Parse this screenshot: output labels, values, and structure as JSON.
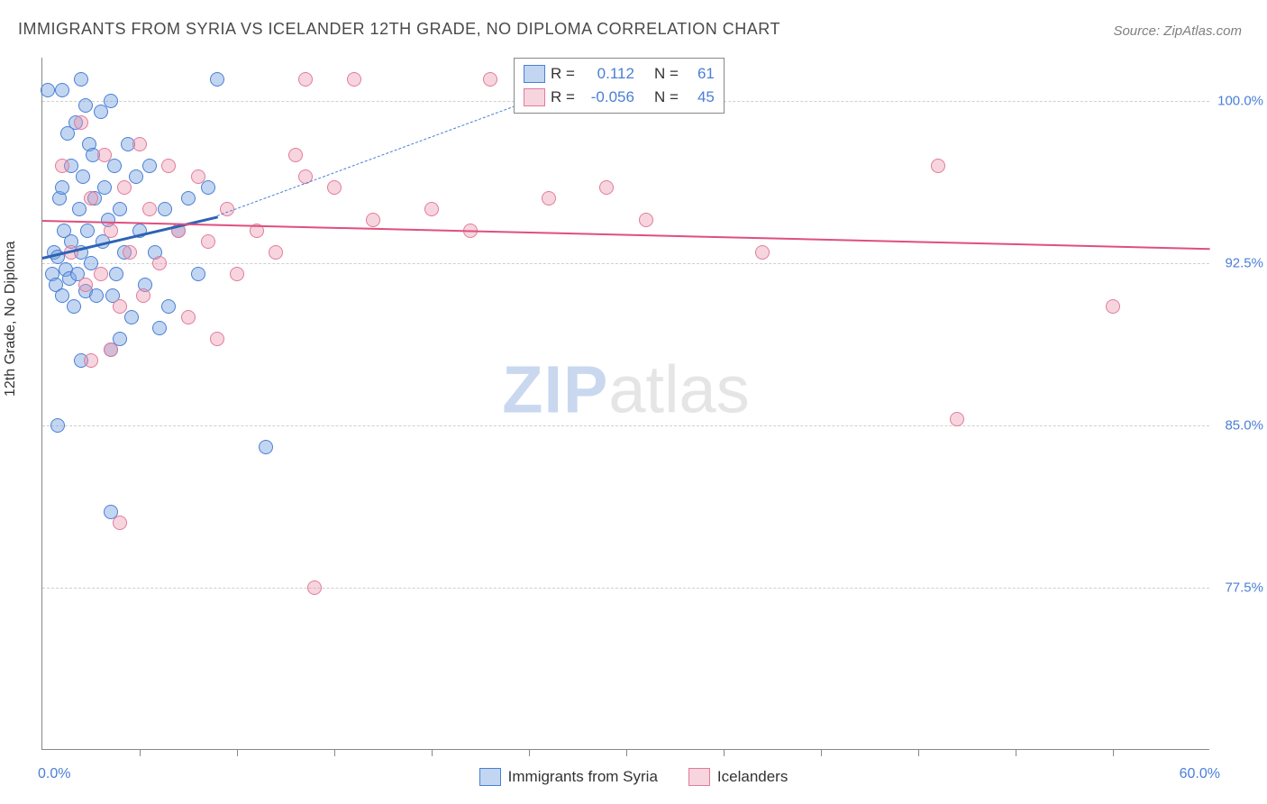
{
  "title": "IMMIGRANTS FROM SYRIA VS ICELANDER 12TH GRADE, NO DIPLOMA CORRELATION CHART",
  "source": "Source: ZipAtlas.com",
  "ylabel": "12th Grade, No Diploma",
  "watermark": {
    "zip": "ZIP",
    "atlas": "atlas"
  },
  "chart": {
    "type": "scatter",
    "background_color": "#ffffff",
    "grid_color": "#cfcfcf",
    "axis_color": "#888888",
    "xlim": [
      0,
      60
    ],
    "ylim": [
      70,
      102
    ],
    "x_axis_label_0": "0.0%",
    "x_axis_label_max": "60.0%",
    "yticks": [
      {
        "v": 77.5,
        "label": "77.5%"
      },
      {
        "v": 85.0,
        "label": "85.0%"
      },
      {
        "v": 92.5,
        "label": "92.5%"
      },
      {
        "v": 100.0,
        "label": "100.0%"
      }
    ],
    "xticks": [
      5,
      10,
      15,
      20,
      25,
      30,
      35,
      40,
      45,
      50,
      55
    ],
    "marker_radius": 8,
    "marker_border": 1.5,
    "series": [
      {
        "name": "Immigrants from Syria",
        "fill": "rgba(120,165,225,0.45)",
        "stroke": "#4a7fd6",
        "trend": {
          "solid": {
            "x1": 0,
            "y1": 92.8,
            "x2": 9,
            "y2": 94.7,
            "color": "#2d63b5",
            "width": 3
          },
          "dash": {
            "x1": 9,
            "y1": 94.7,
            "x2": 28,
            "y2": 101.0,
            "color": "#4a7fd6",
            "width": 1.5
          }
        },
        "points": [
          [
            0.3,
            100.5
          ],
          [
            0.5,
            92.0
          ],
          [
            0.6,
            93.0
          ],
          [
            0.7,
            91.5
          ],
          [
            0.8,
            92.8
          ],
          [
            0.9,
            95.5
          ],
          [
            1.0,
            91.0
          ],
          [
            1.0,
            96.0
          ],
          [
            1.1,
            94.0
          ],
          [
            1.2,
            92.2
          ],
          [
            1.3,
            98.5
          ],
          [
            1.4,
            91.8
          ],
          [
            1.5,
            93.5
          ],
          [
            1.5,
            97.0
          ],
          [
            1.6,
            90.5
          ],
          [
            1.7,
            99.0
          ],
          [
            1.8,
            92.0
          ],
          [
            1.9,
            95.0
          ],
          [
            2.0,
            101.0
          ],
          [
            2.0,
            93.0
          ],
          [
            2.1,
            96.5
          ],
          [
            2.2,
            91.2
          ],
          [
            2.3,
            94.0
          ],
          [
            2.4,
            98.0
          ],
          [
            2.5,
            92.5
          ],
          [
            2.6,
            97.5
          ],
          [
            2.7,
            95.5
          ],
          [
            2.8,
            91.0
          ],
          [
            3.0,
            99.5
          ],
          [
            3.1,
            93.5
          ],
          [
            3.2,
            96.0
          ],
          [
            3.4,
            94.5
          ],
          [
            3.5,
            100.0
          ],
          [
            3.6,
            91.0
          ],
          [
            3.7,
            97.0
          ],
          [
            3.8,
            92.0
          ],
          [
            4.0,
            95.0
          ],
          [
            4.2,
            93.0
          ],
          [
            4.4,
            98.0
          ],
          [
            4.6,
            90.0
          ],
          [
            4.8,
            96.5
          ],
          [
            5.0,
            94.0
          ],
          [
            5.3,
            91.5
          ],
          [
            5.5,
            97.0
          ],
          [
            5.8,
            93.0
          ],
          [
            6.0,
            89.5
          ],
          [
            6.3,
            95.0
          ],
          [
            6.5,
            90.5
          ],
          [
            3.5,
            88.5
          ],
          [
            4.0,
            89.0
          ],
          [
            2.0,
            88.0
          ],
          [
            0.8,
            85.0
          ],
          [
            3.5,
            81.0
          ],
          [
            7.0,
            94.0
          ],
          [
            7.5,
            95.5
          ],
          [
            8.0,
            92.0
          ],
          [
            8.5,
            96.0
          ],
          [
            9.0,
            101.0
          ],
          [
            2.2,
            99.8
          ],
          [
            1.0,
            100.5
          ],
          [
            11.5,
            84.0
          ]
        ]
      },
      {
        "name": "Icelanders",
        "fill": "rgba(235,150,175,0.40)",
        "stroke": "#e27b9a",
        "trend": {
          "solid": {
            "x1": 0,
            "y1": 94.5,
            "x2": 60,
            "y2": 93.2,
            "color": "#e04f7d",
            "width": 2.5
          }
        },
        "points": [
          [
            1.0,
            97.0
          ],
          [
            1.5,
            93.0
          ],
          [
            2.0,
            99.0
          ],
          [
            2.2,
            91.5
          ],
          [
            2.5,
            95.5
          ],
          [
            3.0,
            92.0
          ],
          [
            3.2,
            97.5
          ],
          [
            3.5,
            94.0
          ],
          [
            4.0,
            90.5
          ],
          [
            4.2,
            96.0
          ],
          [
            4.5,
            93.0
          ],
          [
            5.0,
            98.0
          ],
          [
            5.2,
            91.0
          ],
          [
            5.5,
            95.0
          ],
          [
            6.0,
            92.5
          ],
          [
            6.5,
            97.0
          ],
          [
            7.0,
            94.0
          ],
          [
            7.5,
            90.0
          ],
          [
            8.0,
            96.5
          ],
          [
            8.5,
            93.5
          ],
          [
            9.0,
            89.0
          ],
          [
            9.5,
            95.0
          ],
          [
            10.0,
            92.0
          ],
          [
            11.0,
            94.0
          ],
          [
            12.0,
            93.0
          ],
          [
            13.0,
            97.5
          ],
          [
            13.5,
            101.0
          ],
          [
            15.0,
            96.0
          ],
          [
            16.0,
            101.0
          ],
          [
            17.0,
            94.5
          ],
          [
            20.0,
            95.0
          ],
          [
            22.0,
            94.0
          ],
          [
            23.0,
            101.0
          ],
          [
            26.0,
            95.5
          ],
          [
            29.0,
            96.0
          ],
          [
            31.0,
            94.5
          ],
          [
            37.0,
            93.0
          ],
          [
            46.0,
            97.0
          ],
          [
            47.0,
            85.3
          ],
          [
            55.0,
            90.5
          ],
          [
            14.0,
            77.5
          ],
          [
            4.0,
            80.5
          ],
          [
            2.5,
            88.0
          ],
          [
            3.5,
            88.5
          ],
          [
            13.5,
            96.5
          ]
        ]
      }
    ]
  },
  "stats_legend": {
    "rows": [
      {
        "swatch_fill": "rgba(120,165,225,0.45)",
        "swatch_stroke": "#4a7fd6",
        "R_label": "R =",
        "R": "0.112",
        "N_label": "N =",
        "N": "61"
      },
      {
        "swatch_fill": "rgba(235,150,175,0.40)",
        "swatch_stroke": "#e27b9a",
        "R_label": "R =",
        "R": "-0.056",
        "N_label": "N =",
        "N": "45"
      }
    ]
  },
  "bottom_legend": {
    "items": [
      {
        "fill": "rgba(120,165,225,0.45)",
        "stroke": "#4a7fd6",
        "label": "Immigrants from Syria"
      },
      {
        "fill": "rgba(235,150,175,0.40)",
        "stroke": "#e27b9a",
        "label": "Icelanders"
      }
    ]
  }
}
